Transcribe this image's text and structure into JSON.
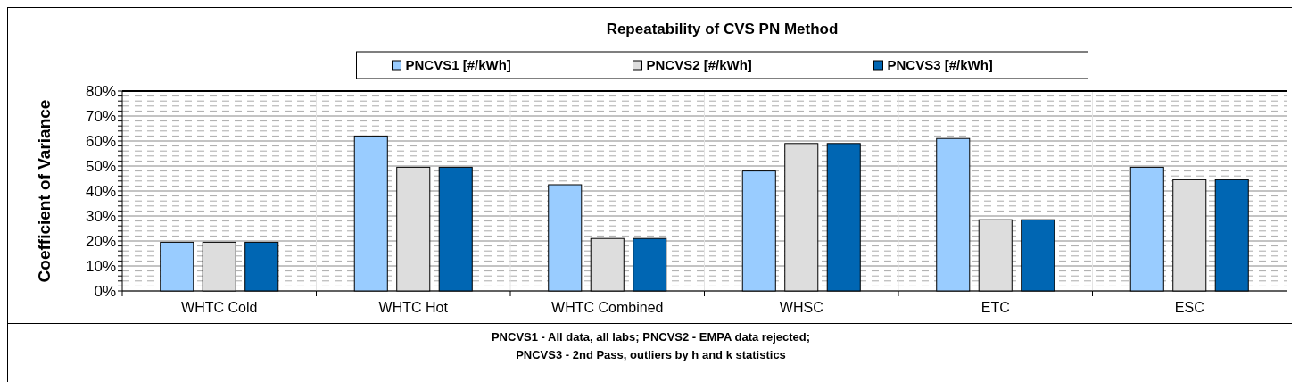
{
  "chart_data": {
    "type": "bar",
    "title": "Repeatability of CVS PN Method",
    "ylabel": "Coefficient of Variance",
    "categories": [
      "WHTC Cold",
      "WHTC Hot",
      "WHTC Combined",
      "WHSC",
      "ETC",
      "ESC"
    ],
    "series": [
      {
        "name": "PNCVS1 [#/kWh]",
        "color": "#99ccff",
        "values": [
          19.5,
          62,
          42.5,
          48,
          61,
          49.5
        ]
      },
      {
        "name": "PNCVS2 [#/kWh]",
        "color": "#dddddd",
        "values": [
          19.5,
          49.5,
          21,
          59,
          28.5,
          44.5
        ]
      },
      {
        "name": "PNCVS3 [#/kWh]",
        "color": "#0066b3",
        "values": [
          19.5,
          49.5,
          21,
          59,
          28.5,
          44.5
        ]
      }
    ],
    "ylim": [
      0,
      80
    ],
    "yticks": [
      {
        "value": 0,
        "label": "0%"
      },
      {
        "value": 2,
        "label": null
      },
      {
        "value": 4,
        "label": null
      },
      {
        "value": 6,
        "label": null
      },
      {
        "value": 8,
        "label": null
      },
      {
        "value": 10,
        "label": "10%"
      },
      {
        "value": 12,
        "label": null
      },
      {
        "value": 14,
        "label": null
      },
      {
        "value": 16,
        "label": null
      },
      {
        "value": 18,
        "label": null
      },
      {
        "value": 20,
        "label": "20%"
      },
      {
        "value": 22,
        "label": null
      },
      {
        "value": 24,
        "label": null
      },
      {
        "value": 26,
        "label": null
      },
      {
        "value": 28,
        "label": null
      },
      {
        "value": 30,
        "label": "30%"
      },
      {
        "value": 32,
        "label": null
      },
      {
        "value": 34,
        "label": null
      },
      {
        "value": 36,
        "label": null
      },
      {
        "value": 38,
        "label": null
      },
      {
        "value": 40,
        "label": "40%"
      },
      {
        "value": 42,
        "label": null
      },
      {
        "value": 44,
        "label": null
      },
      {
        "value": 46,
        "label": null
      },
      {
        "value": 48,
        "label": null
      },
      {
        "value": 50,
        "label": "50%"
      },
      {
        "value": 52,
        "label": null
      },
      {
        "value": 54,
        "label": null
      },
      {
        "value": 56,
        "label": null
      },
      {
        "value": 58,
        "label": null
      },
      {
        "value": 60,
        "label": "60%"
      },
      {
        "value": 62,
        "label": null
      },
      {
        "value": 64,
        "label": null
      },
      {
        "value": 66,
        "label": null
      },
      {
        "value": 68,
        "label": null
      },
      {
        "value": 70,
        "label": "70%"
      },
      {
        "value": 72,
        "label": null
      },
      {
        "value": 74,
        "label": null
      },
      {
        "value": 76,
        "label": null
      },
      {
        "value": 78,
        "label": null
      },
      {
        "value": 80,
        "label": "80%"
      }
    ],
    "grid": "y",
    "legend": "top",
    "annotations": [
      "PNCVS1 - All data, all labs;  PNCVS2 - EMPA data rejected;",
      "PNCVS3 - 2nd Pass, outliers by h and k statistics"
    ]
  }
}
